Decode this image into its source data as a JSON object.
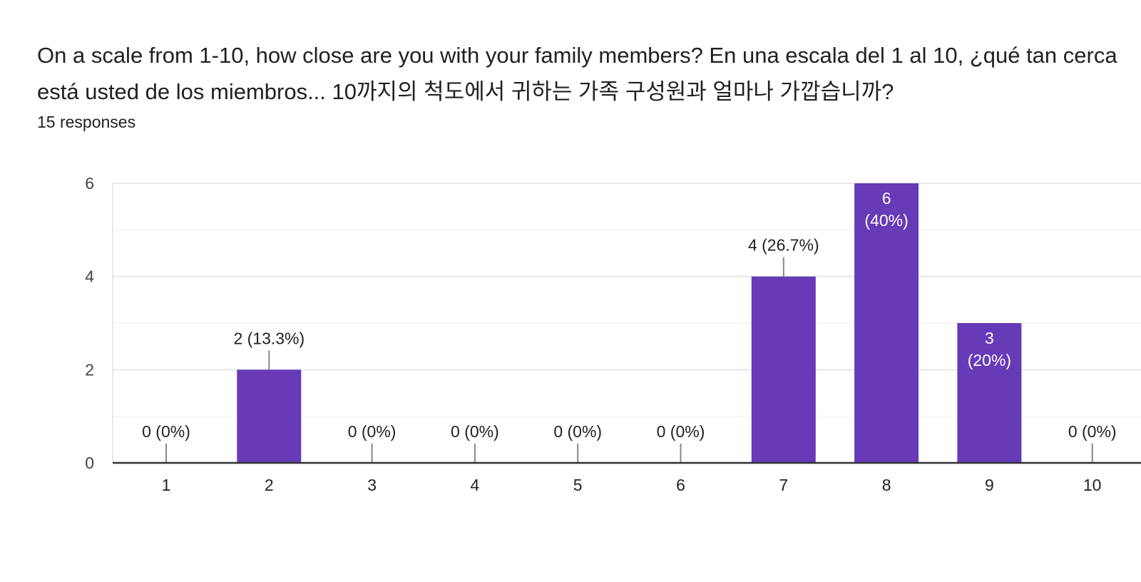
{
  "question": {
    "title": "On a scale from 1-10, how close are you with your family members? En una escala del 1 al 10, ¿qué tan cerca está usted de los miembros... 10까지의 척도에서 귀하는 가족 구성원과 얼마나 가깝습니까?",
    "responses": "15 responses"
  },
  "colors": {
    "bar": "#673ab7",
    "grid": "#e8e8e8",
    "axis": "#333333",
    "leader": "#888888"
  },
  "chart_data": {
    "type": "bar",
    "categories": [
      "1",
      "2",
      "3",
      "4",
      "5",
      "6",
      "7",
      "8",
      "9",
      "10"
    ],
    "values": [
      0,
      2,
      0,
      0,
      0,
      0,
      4,
      6,
      3,
      0
    ],
    "data_labels": [
      "0 (0%)",
      "2 (13.3%)",
      "0 (0%)",
      "0 (0%)",
      "0 (0%)",
      "0 (0%)",
      "4 (26.7%)",
      "6\n(40%)",
      "3\n(20%)",
      "0 (0%)"
    ],
    "label_inside": [
      false,
      false,
      false,
      false,
      false,
      false,
      false,
      true,
      true,
      false
    ],
    "ylim": [
      0,
      6
    ],
    "yticks": [
      0,
      2,
      4,
      6
    ],
    "minor_gridlines": [
      1,
      3,
      5
    ],
    "grid": true,
    "legend": "none",
    "title": "",
    "xlabel": "",
    "ylabel": ""
  }
}
